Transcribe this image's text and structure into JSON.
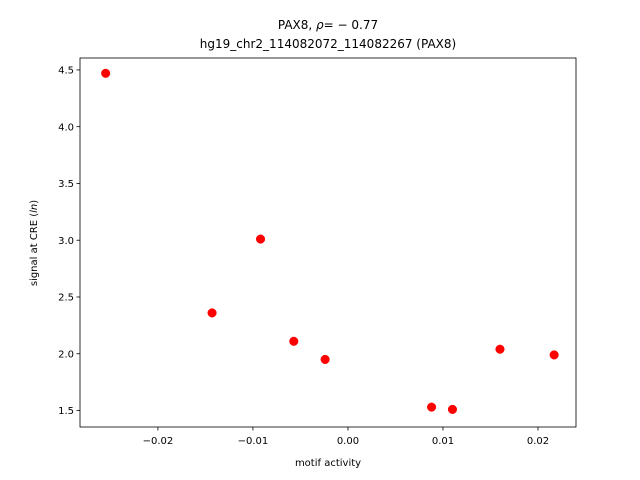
{
  "chart_data": {
    "type": "scatter",
    "title_prefix": "PAX8, ",
    "title_rho_symbol": "ρ",
    "title_rho_value": "= − 0.77",
    "subtitle": "hg19_chr2_114082072_114082267 (PAX8)",
    "xlabel": "motif activity",
    "ylabel_prefix": "signal at CRE (",
    "ylabel_italic": "ln",
    "ylabel_suffix": ")",
    "xlim": [
      -0.0282,
      0.024
    ],
    "ylim": [
      1.355,
      4.605
    ],
    "xticks": [
      -0.02,
      -0.01,
      0.0,
      0.01,
      0.02
    ],
    "xtick_labels": [
      "−0.02",
      "−0.01",
      "0.00",
      "0.01",
      "0.02"
    ],
    "yticks": [
      1.5,
      2.0,
      2.5,
      3.0,
      3.5,
      4.0,
      4.5
    ],
    "ytick_labels": [
      "1.5",
      "2.0",
      "2.5",
      "3.0",
      "3.5",
      "4.0",
      "4.5"
    ],
    "marker_color": "#ff0000",
    "grid": false,
    "points": [
      {
        "x": -0.0255,
        "y": 4.47
      },
      {
        "x": -0.0143,
        "y": 2.36
      },
      {
        "x": -0.0092,
        "y": 3.01
      },
      {
        "x": -0.0057,
        "y": 2.11
      },
      {
        "x": -0.0024,
        "y": 1.95
      },
      {
        "x": 0.0088,
        "y": 1.53
      },
      {
        "x": 0.011,
        "y": 1.51
      },
      {
        "x": 0.016,
        "y": 2.04
      },
      {
        "x": 0.0217,
        "y": 1.99
      }
    ]
  }
}
